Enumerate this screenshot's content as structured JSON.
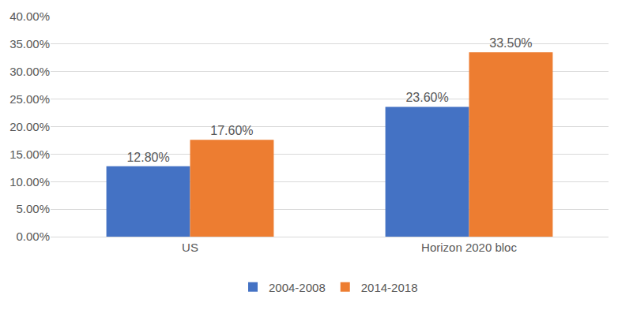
{
  "chart_data": {
    "type": "bar",
    "categories": [
      "US",
      "Horizon 2020 bloc"
    ],
    "series": [
      {
        "name": "2004-2008",
        "color": "#4472c4",
        "values": [
          12.8,
          23.6
        ],
        "value_labels": [
          "12.80%",
          "23.60%"
        ]
      },
      {
        "name": "2014-2018",
        "color": "#ed7d31",
        "values": [
          17.6,
          33.5
        ],
        "value_labels": [
          "17.60%",
          "33.50%"
        ]
      }
    ],
    "ylim": [
      0,
      40
    ],
    "yticks": [
      {
        "value": 0,
        "label": "0.00%"
      },
      {
        "value": 5,
        "label": "5.00%"
      },
      {
        "value": 10,
        "label": "10.00%"
      },
      {
        "value": 15,
        "label": "15.00%"
      },
      {
        "value": 20,
        "label": "20.00%"
      },
      {
        "value": 25,
        "label": "25.00%"
      },
      {
        "value": 30,
        "label": "30.00%"
      },
      {
        "value": 35,
        "label": "35.00%"
      },
      {
        "value": 40,
        "label": "40.00%"
      }
    ],
    "grid": true,
    "legend": "bottom",
    "data_labels": true
  }
}
